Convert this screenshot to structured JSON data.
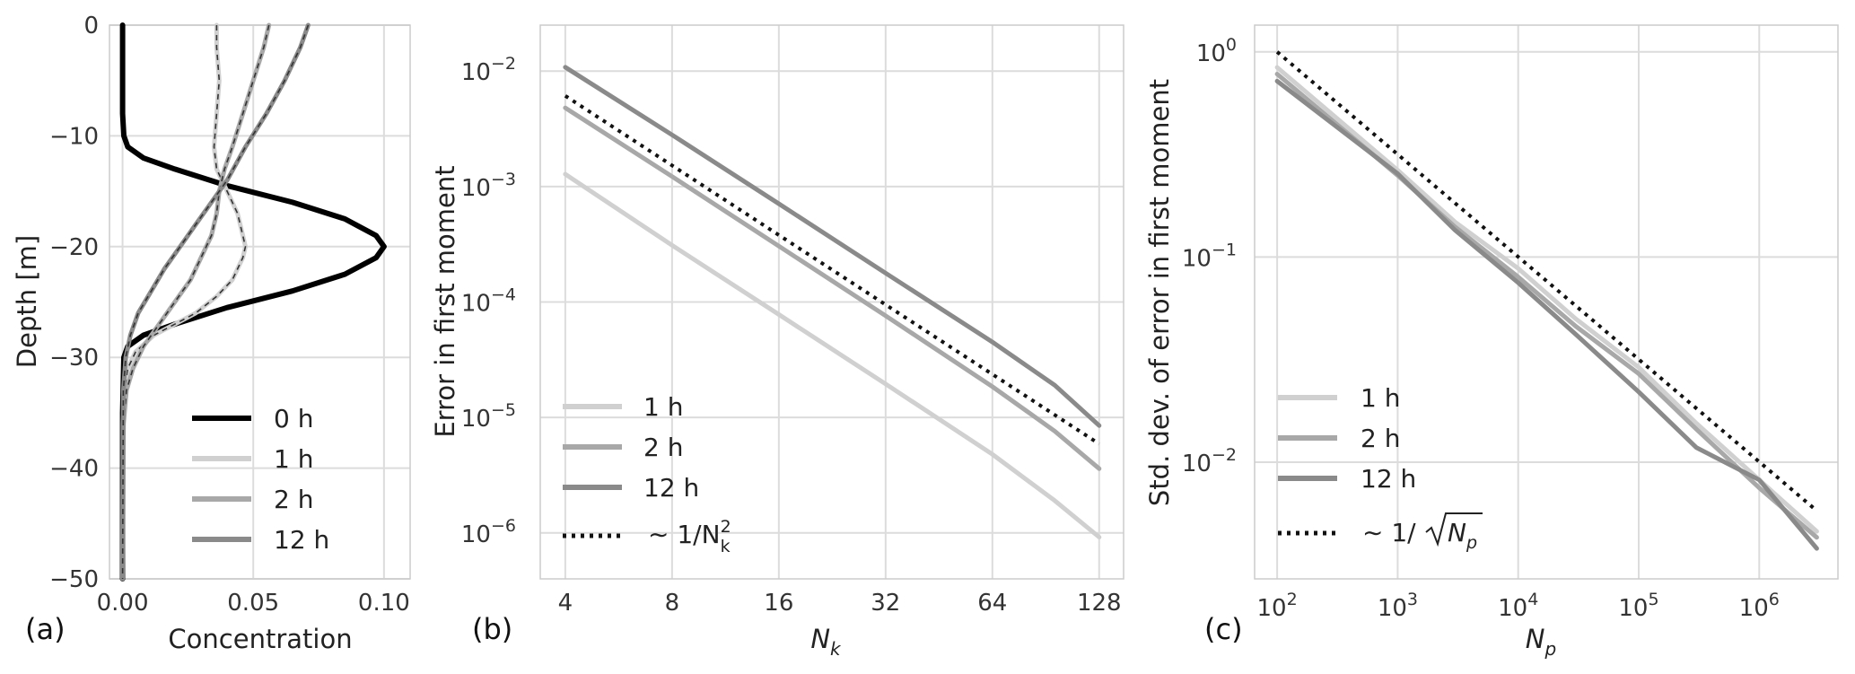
{
  "chart_data": [
    {
      "type": "line",
      "panel": "(a)",
      "xlabel": "Concentration",
      "ylabel": "Depth [m]",
      "xlim": [
        -0.005,
        0.11
      ],
      "ylim": [
        -50,
        0
      ],
      "x_ticks": [
        "0.00",
        "0.05",
        "0.10"
      ],
      "x_tick_values": [
        0.0,
        0.05,
        0.1
      ],
      "y_ticks": [
        "0",
        "−10",
        "−20",
        "−30",
        "−40",
        "−50"
      ],
      "y_tick_values": [
        0,
        -10,
        -20,
        -30,
        -40,
        -50
      ],
      "grid": true,
      "legend_position": "lower-right",
      "series": [
        {
          "name": "0 h",
          "color": "#000000",
          "line_width": 6,
          "dashed_overlay": false,
          "x": [
            0.0,
            0.0,
            0.0,
            0.0005,
            0.002,
            0.008,
            0.02,
            0.04,
            0.065,
            0.085,
            0.097,
            0.1,
            0.097,
            0.085,
            0.065,
            0.04,
            0.02,
            0.008,
            0.002,
            0.0005,
            0.0,
            0.0
          ],
          "depth": [
            0,
            -5,
            -8,
            -10,
            -11,
            -12,
            -13,
            -14.5,
            -16,
            -17.5,
            -19,
            -20,
            -21,
            -22.5,
            -24,
            -25.5,
            -27,
            -28,
            -29,
            -30,
            -35,
            -50
          ]
        },
        {
          "name": "1 h",
          "color": "#d0d0d0",
          "line_width": 5,
          "dashed_overlay": true,
          "x": [
            0.036,
            0.036,
            0.037,
            0.036,
            0.035,
            0.036,
            0.04,
            0.044,
            0.046,
            0.047,
            0.046,
            0.042,
            0.036,
            0.028,
            0.02,
            0.012,
            0.005,
            0.002,
            0.0007,
            0.0002,
            0.0
          ],
          "depth": [
            0,
            -2,
            -5,
            -8,
            -11,
            -13,
            -15,
            -17,
            -19,
            -20,
            -21,
            -23,
            -24.5,
            -26,
            -27,
            -28,
            -29.5,
            -31,
            -33,
            -36,
            -50
          ]
        },
        {
          "name": "2 h",
          "color": "#a8a8a8",
          "line_width": 5,
          "dashed_overlay": true,
          "x": [
            0.056,
            0.054,
            0.05,
            0.046,
            0.042,
            0.039,
            0.037,
            0.036,
            0.034,
            0.03,
            0.026,
            0.02,
            0.014,
            0.008,
            0.004,
            0.0015,
            0.0004,
            0.0
          ],
          "depth": [
            0,
            -2,
            -5,
            -8,
            -11,
            -13,
            -15,
            -17,
            -19,
            -21,
            -23,
            -25,
            -27,
            -29,
            -31,
            -33,
            -36,
            -50
          ]
        },
        {
          "name": "12 h",
          "color": "#8a8a8a",
          "line_width": 5,
          "dashed_overlay": true,
          "x": [
            0.071,
            0.068,
            0.062,
            0.055,
            0.047,
            0.04,
            0.034,
            0.028,
            0.022,
            0.016,
            0.011,
            0.006,
            0.003,
            0.0012,
            0.0003,
            0.0
          ],
          "depth": [
            0,
            -2,
            -5,
            -8,
            -11,
            -14,
            -16,
            -18,
            -20,
            -22,
            -24,
            -26,
            -28,
            -30,
            -33,
            -50
          ]
        }
      ]
    },
    {
      "type": "line",
      "panel": "(b)",
      "xlabel": "N_k",
      "ylabel": "Error in first moment",
      "xscale": "log2",
      "yscale": "log",
      "xlim": [
        3.4,
        150
      ],
      "ylim": [
        4e-07,
        0.025
      ],
      "x_ticks": [
        "4",
        "8",
        "16",
        "32",
        "64",
        "128"
      ],
      "x_tick_values": [
        4,
        8,
        16,
        32,
        64,
        128
      ],
      "y_tick_values": [
        1e-06,
        1e-05,
        0.0001,
        0.001,
        0.01
      ],
      "y_tick_exponents": [
        "−6",
        "−5",
        "−4",
        "−3",
        "−2"
      ],
      "grid": true,
      "legend_position": "lower-left",
      "series": [
        {
          "name": "1 h",
          "color": "#d0d0d0",
          "line_width": 5,
          "x": [
            4,
            8,
            16,
            32,
            64,
            96,
            128
          ],
          "y": [
            0.00128,
            0.00031,
            7.8e-05,
            1.95e-05,
            4.8e-06,
            1.9e-06,
            9.2e-07
          ]
        },
        {
          "name": "2 h",
          "color": "#a8a8a8",
          "line_width": 5,
          "x": [
            4,
            8,
            16,
            32,
            64,
            96,
            128
          ],
          "y": [
            0.0048,
            0.00122,
            0.000305,
            7.6e-05,
            1.85e-05,
            7.6e-06,
            3.6e-06
          ]
        },
        {
          "name": "12 h",
          "color": "#8a8a8a",
          "line_width": 5,
          "x": [
            4,
            8,
            16,
            32,
            64,
            96,
            128
          ],
          "y": [
            0.0108,
            0.0028,
            0.00071,
            0.000178,
            4.5e-05,
            1.9e-05,
            8.5e-06
          ]
        },
        {
          "name": "~ 1/N_k^2",
          "color": "#111111",
          "line_width": 4,
          "dotted": true,
          "x": [
            4,
            128
          ],
          "y": [
            0.0061,
            5.9e-06
          ]
        }
      ]
    },
    {
      "type": "line",
      "panel": "(c)",
      "xlabel": "N_p",
      "ylabel": "Std. dev. of error in first moment",
      "xscale": "log",
      "yscale": "log",
      "xlim": [
        65,
        4500000
      ],
      "ylim": [
        0.0027,
        1.35
      ],
      "x_tick_values": [
        100,
        1000,
        10000,
        100000,
        1000000
      ],
      "x_tick_exponents": [
        "2",
        "3",
        "4",
        "5",
        "6"
      ],
      "y_tick_values": [
        0.01,
        0.1,
        1
      ],
      "y_tick_exponents": [
        "−2",
        "−1",
        "0"
      ],
      "grid": true,
      "legend_position": "lower-left",
      "series": [
        {
          "name": "1 h",
          "color": "#d0d0d0",
          "line_width": 5,
          "x": [
            100,
            1000,
            3000,
            10000,
            30000,
            100000,
            300000,
            1000000,
            3000000
          ],
          "y": [
            0.84,
            0.265,
            0.148,
            0.088,
            0.05,
            0.029,
            0.0155,
            0.0082,
            0.0046
          ]
        },
        {
          "name": "2 h",
          "color": "#a8a8a8",
          "line_width": 5,
          "x": [
            100,
            1000,
            3000,
            10000,
            30000,
            100000,
            300000,
            1000000,
            3000000
          ],
          "y": [
            0.78,
            0.25,
            0.14,
            0.08,
            0.046,
            0.027,
            0.0145,
            0.0075,
            0.0043
          ]
        },
        {
          "name": "12 h",
          "color": "#8a8a8a",
          "line_width": 5,
          "x": [
            100,
            1000,
            3000,
            10000,
            30000,
            100000,
            300000,
            1000000,
            3000000
          ],
          "y": [
            0.72,
            0.255,
            0.135,
            0.075,
            0.042,
            0.022,
            0.0118,
            0.0082,
            0.0038
          ]
        },
        {
          "name": "~ 1/sqrt(N_p)",
          "color": "#111111",
          "line_width": 4,
          "dotted": true,
          "x": [
            100,
            3000000
          ],
          "y": [
            1.0,
            0.0058
          ]
        }
      ]
    }
  ],
  "labels": {
    "a_panel": "(a)",
    "a_xlabel": "Concentration",
    "a_ylabel": "Depth [m]",
    "b_panel": "(b)",
    "b_xlabel_base": "N",
    "b_xlabel_sub": "k",
    "b_ylabel": "Error in first moment",
    "c_panel": "(c)",
    "c_xlabel_base": "N",
    "c_xlabel_sub": "p",
    "c_ylabel": "Std. dev. of error in first moment",
    "tick_base": "10",
    "legend_a": [
      "0 h",
      "1 h",
      "2 h",
      "12 h"
    ],
    "legend_b": [
      "1 h",
      "2 h",
      "12 h"
    ],
    "legend_b_ref_prefix": "∼ 1/N",
    "legend_b_ref_sub": "k",
    "legend_b_ref_sup": "2",
    "legend_c": [
      "1 h",
      "2 h",
      "12 h"
    ],
    "legend_c_ref_prefix": "∼ 1/",
    "legend_c_ref_radicand": "N",
    "legend_c_ref_sub": "p"
  }
}
